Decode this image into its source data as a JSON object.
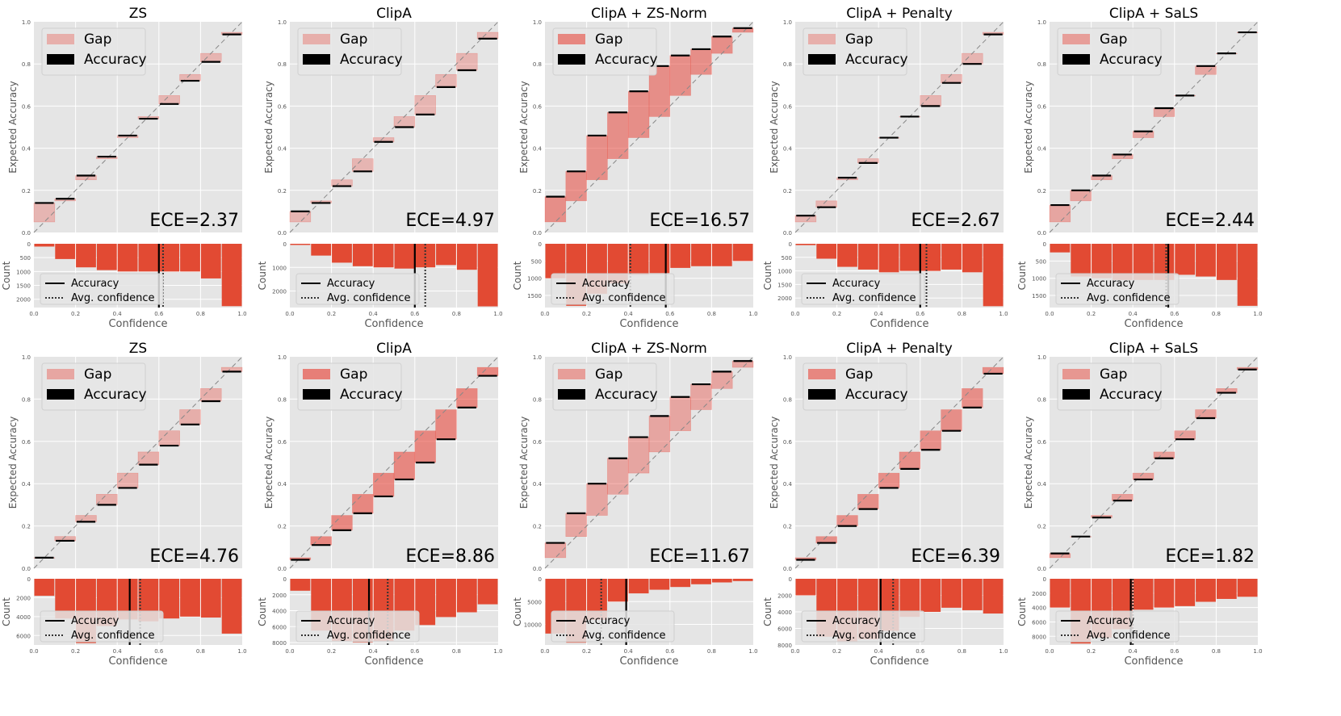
{
  "figure": {
    "colors": {
      "panel_bg": "#e5e5e5",
      "grid": "#ffffff",
      "gap_fill": "#e8473c",
      "count_bar": "#e24a33",
      "accuracy_line": "#000000",
      "diagonal": "#888888"
    },
    "common": {
      "ylabel_top": "Expected Accuracy",
      "ylabel_bottom": "Count",
      "xlabel_bottom": "Confidence",
      "legend_gap": "Gap",
      "legend_accuracy": "Accuracy",
      "legend_avg_conf": "Avg. confidence",
      "top_ticks": [
        "0.0",
        "0.2",
        "0.4",
        "0.6",
        "0.8",
        "1.0"
      ],
      "x_ticks": [
        "0.0",
        "0.2",
        "0.4",
        "0.6",
        "0.8",
        "1.0"
      ]
    }
  },
  "chart_data": [
    {
      "type": "bar",
      "title": "ZS",
      "ece_label": "ECE=2.37",
      "accuracy": [
        0.14,
        0.16,
        0.27,
        0.36,
        0.46,
        0.54,
        0.61,
        0.72,
        0.81,
        0.94
      ],
      "counts": [
        100,
        550,
        850,
        950,
        1000,
        1000,
        1000,
        1000,
        1250,
        2250
      ],
      "count_ticks": [
        "0",
        "500",
        "1000",
        "1500",
        "2000"
      ],
      "count_max": 2300,
      "acc_line": 0.6,
      "conf_line": 0.62,
      "gap_alpha": 0.3,
      "ylim": [
        0,
        1
      ],
      "xlim": [
        0,
        1
      ]
    },
    {
      "type": "bar",
      "title": "ClipA",
      "ece_label": "ECE=4.97",
      "accuracy": [
        0.1,
        0.14,
        0.22,
        0.29,
        0.43,
        0.5,
        0.56,
        0.69,
        0.77,
        0.92
      ],
      "counts": [
        50,
        500,
        800,
        950,
        1000,
        1050,
        1000,
        900,
        1100,
        2650
      ],
      "count_ticks": [
        "0",
        "1000",
        "2000"
      ],
      "count_max": 2700,
      "acc_line": 0.6,
      "conf_line": 0.65,
      "gap_alpha": 0.3,
      "ylim": [
        0,
        1
      ],
      "xlim": [
        0,
        1
      ]
    },
    {
      "type": "bar",
      "title": "ClipA + ZS-Norm",
      "ece_label": "ECE=16.57",
      "accuracy": [
        0.17,
        0.29,
        0.46,
        0.57,
        0.67,
        0.79,
        0.84,
        0.87,
        0.93,
        0.97
      ],
      "counts": [
        1000,
        1800,
        1450,
        1150,
        900,
        850,
        700,
        650,
        650,
        500
      ],
      "count_ticks": [
        "0",
        "500",
        "1000",
        "1500"
      ],
      "count_max": 1850,
      "acc_line": 0.58,
      "conf_line": 0.41,
      "gap_alpha": 0.55,
      "ylim": [
        0,
        1
      ],
      "xlim": [
        0,
        1
      ]
    },
    {
      "type": "bar",
      "title": "ClipA + Penalty",
      "ece_label": "ECE=2.67",
      "accuracy": [
        0.08,
        0.12,
        0.26,
        0.33,
        0.45,
        0.55,
        0.6,
        0.71,
        0.8,
        0.94
      ],
      "counts": [
        50,
        550,
        850,
        950,
        1050,
        1000,
        1000,
        950,
        1050,
        2300
      ],
      "count_ticks": [
        "0",
        "500",
        "1000",
        "1500",
        "2000"
      ],
      "count_max": 2350,
      "acc_line": 0.6,
      "conf_line": 0.63,
      "gap_alpha": 0.3,
      "ylim": [
        0,
        1
      ],
      "xlim": [
        0,
        1
      ]
    },
    {
      "type": "bar",
      "title": "ClipA + SaLS",
      "ece_label": "ECE=2.44",
      "accuracy": [
        0.13,
        0.2,
        0.27,
        0.37,
        0.48,
        0.59,
        0.65,
        0.79,
        0.85,
        0.95
      ],
      "counts": [
        250,
        950,
        1000,
        1050,
        1050,
        1050,
        900,
        950,
        1050,
        1800
      ],
      "count_ticks": [
        "0",
        "500",
        "1000",
        "1500"
      ],
      "count_max": 1850,
      "acc_line": 0.57,
      "conf_line": 0.56,
      "gap_alpha": 0.4,
      "ylim": [
        0,
        1
      ],
      "xlim": [
        0,
        1
      ]
    },
    {
      "type": "bar",
      "title": "ZS",
      "ece_label": "ECE=4.76",
      "accuracy": [
        0.05,
        0.13,
        0.22,
        0.3,
        0.38,
        0.49,
        0.58,
        0.68,
        0.79,
        0.93
      ],
      "counts": [
        1800,
        4200,
        6800,
        5000,
        4300,
        4500,
        4200,
        4000,
        4100,
        5800
      ],
      "count_ticks": [
        "0",
        "2000",
        "4000",
        "6000"
      ],
      "count_max": 7000,
      "acc_line": 0.46,
      "conf_line": 0.51,
      "gap_alpha": 0.35,
      "ylim": [
        0,
        1
      ],
      "xlim": [
        0,
        1
      ]
    },
    {
      "type": "bar",
      "title": "ClipA",
      "ece_label": "ECE=8.86",
      "accuracy": [
        0.04,
        0.11,
        0.18,
        0.26,
        0.34,
        0.42,
        0.5,
        0.61,
        0.76,
        0.91
      ],
      "counts": [
        1500,
        6500,
        7800,
        8000,
        7800,
        6500,
        5800,
        4800,
        4200,
        3200
      ],
      "count_ticks": [
        "0",
        "2000",
        "4000",
        "6000",
        "8000"
      ],
      "count_max": 8300,
      "acc_line": 0.38,
      "conf_line": 0.47,
      "gap_alpha": 0.6,
      "ylim": [
        0,
        1
      ],
      "xlim": [
        0,
        1
      ]
    },
    {
      "type": "bar",
      "title": "ClipA + ZS-Norm",
      "ece_label": "ECE=11.67",
      "accuracy": [
        0.12,
        0.26,
        0.4,
        0.52,
        0.62,
        0.72,
        0.81,
        0.87,
        0.93,
        0.98
      ],
      "counts": [
        12000,
        14000,
        9000,
        5000,
        3200,
        2400,
        1800,
        1200,
        800,
        500
      ],
      "count_ticks": [
        "0",
        "5000",
        "10000"
      ],
      "count_max": 14500,
      "acc_line": 0.39,
      "conf_line": 0.27,
      "gap_alpha": 0.4,
      "ylim": [
        0,
        1
      ],
      "xlim": [
        0,
        1
      ]
    },
    {
      "type": "bar",
      "title": "ClipA + Penalty",
      "ece_label": "ECE=6.39",
      "accuracy": [
        0.04,
        0.12,
        0.2,
        0.28,
        0.38,
        0.47,
        0.56,
        0.65,
        0.76,
        0.92
      ],
      "counts": [
        2000,
        7000,
        7600,
        7300,
        6300,
        4600,
        4000,
        3500,
        3800,
        4200
      ],
      "count_ticks": [
        "0",
        "2000",
        "4000",
        "6000",
        "8000"
      ],
      "count_max": 8000,
      "acc_line": 0.41,
      "conf_line": 0.47,
      "gap_alpha": 0.55,
      "ylim": [
        0,
        1
      ],
      "xlim": [
        0,
        1
      ]
    },
    {
      "type": "bar",
      "title": "ClipA + SaLS",
      "ece_label": "ECE=1.82",
      "accuracy": [
        0.07,
        0.15,
        0.24,
        0.32,
        0.42,
        0.52,
        0.61,
        0.71,
        0.83,
        0.94
      ],
      "counts": [
        4000,
        9000,
        8200,
        7000,
        4300,
        4000,
        3800,
        3200,
        2800,
        2500
      ],
      "count_ticks": [
        "0",
        "2000",
        "4000",
        "6000",
        "8000"
      ],
      "count_max": 9200,
      "acc_line": 0.39,
      "conf_line": 0.4,
      "gap_alpha": 0.45,
      "ylim": [
        0,
        1
      ],
      "xlim": [
        0,
        1
      ]
    }
  ]
}
